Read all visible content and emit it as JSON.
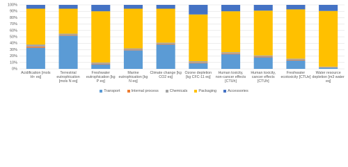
{
  "chart_data": {
    "type": "stacked_bar",
    "categories": [
      "Acidification [mols H+ eq]",
      "Terrestrial eutrophication [mols N eq]",
      "Freshwater eutrophication [kg P eq]",
      "Marine eutrophication [kg N eq]",
      "Climate change [kg CO2 eq]",
      "Ozone depletion [kg CFC-11 eq]",
      "Human toxicity, non-cancer effects [CTUh]",
      "Human toxicity, cancer effects [CTUh]",
      "Freshwater ecotoxicity [CTUe]",
      "Water resource depletion [m3 water eq]"
    ],
    "series": [
      {
        "name": "Transport",
        "color": "#5b9bd5",
        "values": [
          33,
          52,
          7,
          29,
          38,
          9,
          23,
          18,
          13,
          2
        ]
      },
      {
        "name": "Internal process",
        "color": "#ed7d31",
        "values": [
          2,
          1,
          1,
          1,
          1,
          1,
          1,
          1,
          1,
          0.5
        ]
      },
      {
        "name": "Chemicals",
        "color": "#a5a5a5",
        "values": [
          3,
          2,
          2,
          2,
          2,
          2,
          2,
          2,
          2,
          1
        ]
      },
      {
        "name": "Packaging",
        "color": "#ffc000",
        "values": [
          56,
          39,
          80,
          62,
          53,
          73,
          64,
          70,
          77,
          87
        ]
      },
      {
        "name": "Accessories",
        "color": "#4472c4",
        "values": [
          6,
          6,
          10,
          6,
          6,
          15,
          10,
          9,
          7,
          9.5
        ]
      }
    ],
    "ylim": [
      0,
      100
    ],
    "yticks": [
      {
        "value": 0,
        "label": "0%"
      },
      {
        "value": 10,
        "label": "10%"
      },
      {
        "value": 20,
        "label": "20%"
      },
      {
        "value": 30,
        "label": "30%"
      },
      {
        "value": 40,
        "label": "40%"
      },
      {
        "value": 50,
        "label": "50%"
      },
      {
        "value": 60,
        "label": "60%"
      },
      {
        "value": 70,
        "label": "70%"
      },
      {
        "value": 80,
        "label": "80%"
      },
      {
        "value": 90,
        "label": "90%"
      },
      {
        "value": 100,
        "label": "100%"
      }
    ],
    "grid": true
  }
}
